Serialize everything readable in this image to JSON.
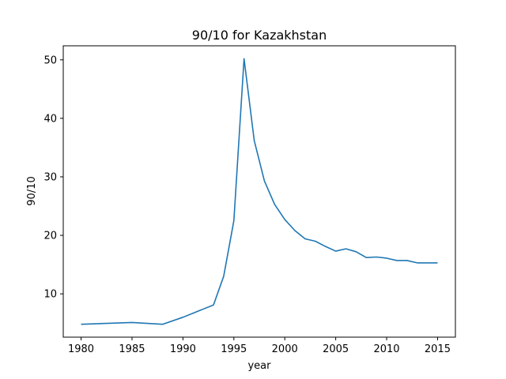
{
  "chart_data": {
    "type": "line",
    "title": "90/10 for Kazakhstan",
    "xlabel": "year",
    "ylabel": "90/10",
    "xlim": [
      1978.25,
      2016.75
    ],
    "ylim": [
      2.6,
      52.4
    ],
    "xticks": [
      1980,
      1985,
      1990,
      1995,
      2000,
      2005,
      2010,
      2015
    ],
    "yticks": [
      10,
      20,
      30,
      40,
      50
    ],
    "grid": false,
    "series": [
      {
        "color": "#1f77b4",
        "x": [
          1980,
          1985,
          1988,
          1990,
          1991,
          1992,
          1993,
          1994,
          1995,
          1996,
          1997,
          1998,
          1999,
          2000,
          2001,
          2002,
          2003,
          2004,
          2005,
          2006,
          2007,
          2008,
          2009,
          2010,
          2011,
          2012,
          2013,
          2014,
          2015
        ],
        "y": [
          4.8,
          5.1,
          4.8,
          6.0,
          6.7,
          7.4,
          8.1,
          13.0,
          22.5,
          50.2,
          36.2,
          29.3,
          25.3,
          22.7,
          20.8,
          19.4,
          19.0,
          18.1,
          17.3,
          17.7,
          17.2,
          16.2,
          16.3,
          16.1,
          15.7,
          15.7,
          15.3,
          15.3,
          15.3
        ]
      }
    ]
  }
}
